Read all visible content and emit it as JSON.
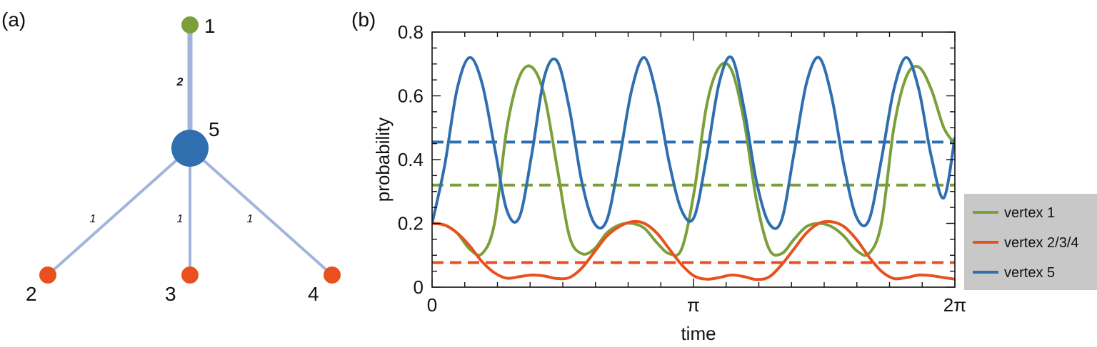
{
  "panel_a": {
    "label": "(a)",
    "nodes": [
      {
        "id": "1",
        "label": "1",
        "color": "#7ba03a",
        "role": "vertex-1"
      },
      {
        "id": "2",
        "label": "2",
        "color": "#e8511f",
        "role": "vertex-2"
      },
      {
        "id": "3",
        "label": "3",
        "color": "#e8511f",
        "role": "vertex-3"
      },
      {
        "id": "4",
        "label": "4",
        "color": "#e8511f",
        "role": "vertex-4"
      },
      {
        "id": "5",
        "label": "5",
        "color": "#2f6fb0",
        "role": "vertex-5"
      }
    ],
    "edges": [
      {
        "from": "5",
        "to": "1",
        "weight": "2",
        "emphasis": "bold"
      },
      {
        "from": "5",
        "to": "2",
        "weight": "1",
        "emphasis": "italic"
      },
      {
        "from": "5",
        "to": "3",
        "weight": "1",
        "emphasis": "italic"
      },
      {
        "from": "5",
        "to": "4",
        "weight": "1",
        "emphasis": "italic"
      }
    ],
    "edge_color": "#a3b4dc"
  },
  "chart_data": {
    "panel_label": "(b)",
    "type": "line",
    "xlabel": "time",
    "ylabel": "probability",
    "xlim": [
      0,
      6.2832
    ],
    "ylim": [
      0,
      0.8
    ],
    "x_ticks": [
      {
        "value": 0,
        "label": "0"
      },
      {
        "value": 3.1416,
        "label": "π"
      },
      {
        "value": 6.2832,
        "label": "2π"
      }
    ],
    "y_ticks": [
      {
        "value": 0,
        "label": "0"
      },
      {
        "value": 0.2,
        "label": "0.2"
      },
      {
        "value": 0.4,
        "label": "0.4"
      },
      {
        "value": 0.6,
        "label": "0.6"
      },
      {
        "value": 0.8,
        "label": "0.8"
      }
    ],
    "x_minor_tick_count": 17,
    "grid": false,
    "legend_position": "right",
    "series": [
      {
        "name": "vertex 1",
        "color": "#7ba03a",
        "style": "solid",
        "x": [
          0,
          0.15,
          0.3,
          0.45,
          0.6,
          0.75,
          0.9,
          1.05,
          1.2,
          1.35,
          1.5,
          1.65,
          1.8,
          1.95,
          2.1,
          2.25,
          2.4,
          2.55,
          2.7,
          2.85,
          3.0,
          3.15,
          3.3,
          3.45,
          3.6,
          3.75,
          3.9,
          4.05,
          4.2,
          4.35,
          4.5,
          4.65,
          4.8,
          4.95,
          5.1,
          5.25,
          5.4,
          5.55,
          5.7,
          5.85,
          6.0,
          6.15,
          6.2832
        ],
        "y": [
          0.2,
          0.195,
          0.17,
          0.12,
          0.105,
          0.2,
          0.5,
          0.66,
          0.69,
          0.6,
          0.38,
          0.16,
          0.105,
          0.12,
          0.17,
          0.195,
          0.2,
          0.185,
          0.14,
          0.105,
          0.12,
          0.3,
          0.57,
          0.69,
          0.68,
          0.52,
          0.27,
          0.12,
          0.105,
          0.15,
          0.19,
          0.2,
          0.19,
          0.16,
          0.115,
          0.105,
          0.2,
          0.5,
          0.66,
          0.69,
          0.62,
          0.5,
          0.45
        ]
      },
      {
        "name": "vertex 2/3/4",
        "color": "#e8511f",
        "style": "solid",
        "x": [
          0,
          0.15,
          0.3,
          0.45,
          0.6,
          0.75,
          0.9,
          1.05,
          1.2,
          1.35,
          1.5,
          1.65,
          1.8,
          1.95,
          2.1,
          2.25,
          2.4,
          2.55,
          2.7,
          2.85,
          3.0,
          3.15,
          3.3,
          3.45,
          3.6,
          3.75,
          3.9,
          4.05,
          4.2,
          4.35,
          4.5,
          4.65,
          4.8,
          4.95,
          5.1,
          5.25,
          5.4,
          5.55,
          5.7,
          5.85,
          6.0,
          6.15,
          6.2832
        ],
        "y": [
          0.2,
          0.195,
          0.17,
          0.13,
          0.08,
          0.045,
          0.028,
          0.033,
          0.038,
          0.035,
          0.027,
          0.03,
          0.06,
          0.11,
          0.16,
          0.19,
          0.205,
          0.2,
          0.17,
          0.12,
          0.07,
          0.035,
          0.025,
          0.03,
          0.038,
          0.033,
          0.024,
          0.032,
          0.07,
          0.12,
          0.17,
          0.2,
          0.205,
          0.19,
          0.15,
          0.095,
          0.05,
          0.027,
          0.03,
          0.038,
          0.036,
          0.03,
          0.025
        ]
      },
      {
        "name": "vertex 5",
        "color": "#2f6fb0",
        "style": "solid",
        "x": [
          0,
          0.15,
          0.3,
          0.45,
          0.6,
          0.75,
          0.9,
          1.05,
          1.2,
          1.35,
          1.5,
          1.65,
          1.8,
          1.95,
          2.1,
          2.25,
          2.4,
          2.55,
          2.7,
          2.85,
          3.0,
          3.15,
          3.3,
          3.45,
          3.6,
          3.75,
          3.9,
          4.05,
          4.2,
          4.35,
          4.5,
          4.65,
          4.8,
          4.95,
          5.1,
          5.25,
          5.4,
          5.55,
          5.7,
          5.85,
          6.0,
          6.15,
          6.2832
        ],
        "y": [
          0.2,
          0.38,
          0.62,
          0.72,
          0.64,
          0.44,
          0.24,
          0.22,
          0.42,
          0.66,
          0.71,
          0.56,
          0.33,
          0.2,
          0.21,
          0.4,
          0.62,
          0.72,
          0.6,
          0.39,
          0.24,
          0.22,
          0.41,
          0.64,
          0.72,
          0.56,
          0.33,
          0.2,
          0.21,
          0.42,
          0.64,
          0.72,
          0.6,
          0.38,
          0.22,
          0.21,
          0.4,
          0.62,
          0.72,
          0.62,
          0.41,
          0.28,
          0.47
        ]
      },
      {
        "name": "",
        "color": "#2f6fb0",
        "style": "dashed",
        "x": [
          0,
          6.2832
        ],
        "y": [
          0.455,
          0.455
        ]
      },
      {
        "name": "",
        "color": "#7ba03a",
        "style": "dashed",
        "x": [
          0,
          6.2832
        ],
        "y": [
          0.32,
          0.32
        ]
      },
      {
        "name": "",
        "color": "#e8511f",
        "style": "dashed",
        "x": [
          0,
          6.2832
        ],
        "y": [
          0.077,
          0.077
        ]
      }
    ],
    "legend": [
      {
        "label": "vertex 1",
        "color": "#7ba03a"
      },
      {
        "label": "vertex 2/3/4",
        "color": "#e8511f"
      },
      {
        "label": "vertex 5",
        "color": "#2f6fb0"
      }
    ],
    "legend_bg": "#c8c8c8"
  }
}
